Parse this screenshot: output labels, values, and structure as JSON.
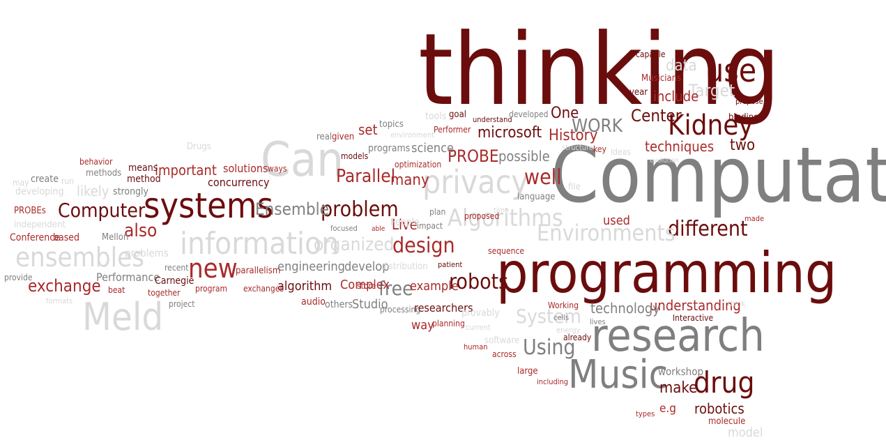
{
  "palette": {
    "dark": "#6b0d0d",
    "red": "#a92a2a",
    "gray": "#7f7f7f",
    "light": "#d9d9d9"
  },
  "words": [
    {
      "text": "thinking",
      "color": "dark"
    },
    {
      "text": "Computational",
      "color": "gray"
    },
    {
      "text": "programming",
      "color": "dark"
    },
    {
      "text": "research",
      "color": "gray"
    },
    {
      "text": "Music",
      "color": "gray"
    },
    {
      "text": "Can",
      "color": "light"
    },
    {
      "text": "systems",
      "color": "dark"
    },
    {
      "text": "information",
      "color": "light"
    },
    {
      "text": "Meld",
      "color": "light"
    },
    {
      "text": "ensembles",
      "color": "light"
    },
    {
      "text": "privacy",
      "color": "light"
    },
    {
      "text": "use",
      "color": "dark"
    },
    {
      "text": "Kidney",
      "color": "dark"
    },
    {
      "text": "drug",
      "color": "dark"
    },
    {
      "text": "robots",
      "color": "dark"
    },
    {
      "text": "new",
      "color": "red"
    },
    {
      "text": "problem",
      "color": "dark"
    },
    {
      "text": "Computer",
      "color": "dark"
    },
    {
      "text": "different",
      "color": "dark"
    },
    {
      "text": "design",
      "color": "red"
    },
    {
      "text": "Environments",
      "color": "light"
    },
    {
      "text": "Algorithms",
      "color": "light"
    },
    {
      "text": "Ensemble",
      "color": "gray"
    },
    {
      "text": "organized",
      "color": "light"
    },
    {
      "text": "Using",
      "color": "gray"
    },
    {
      "text": "System",
      "color": "light"
    },
    {
      "text": "exchange",
      "color": "red"
    },
    {
      "text": "also",
      "color": "red"
    },
    {
      "text": "Parallel",
      "color": "red"
    },
    {
      "text": "PROBE",
      "color": "red"
    },
    {
      "text": "WORK",
      "color": "gray"
    },
    {
      "text": "History",
      "color": "red"
    },
    {
      "text": "free",
      "color": "gray"
    },
    {
      "text": "make",
      "color": "dark"
    },
    {
      "text": "possible",
      "color": "gray"
    },
    {
      "text": "Target",
      "color": "light"
    },
    {
      "text": "Center",
      "color": "dark"
    },
    {
      "text": "many",
      "color": "red"
    },
    {
      "text": "microsoft",
      "color": "dark"
    },
    {
      "text": "well",
      "color": "red"
    },
    {
      "text": "Live",
      "color": "red"
    },
    {
      "text": "important",
      "color": "red"
    },
    {
      "text": "understanding",
      "color": "red"
    },
    {
      "text": "technology",
      "color": "gray"
    },
    {
      "text": "robotics",
      "color": "dark"
    },
    {
      "text": "Studio",
      "color": "gray"
    },
    {
      "text": "engineering",
      "color": "gray"
    },
    {
      "text": "develop",
      "color": "gray"
    },
    {
      "text": "algorithm",
      "color": "dark"
    },
    {
      "text": "Complex",
      "color": "red"
    },
    {
      "text": "example",
      "color": "red"
    },
    {
      "text": "science",
      "color": "gray"
    },
    {
      "text": "techniques",
      "color": "red"
    },
    {
      "text": "One",
      "color": "dark"
    },
    {
      "text": "include",
      "color": "red"
    },
    {
      "text": "data",
      "color": "light"
    },
    {
      "text": "used",
      "color": "red"
    },
    {
      "text": "two",
      "color": "dark"
    },
    {
      "text": "set",
      "color": "red"
    },
    {
      "text": "solutions",
      "color": "red"
    },
    {
      "text": "concurrency",
      "color": "dark"
    },
    {
      "text": "Performance",
      "color": "gray"
    },
    {
      "text": "likely",
      "color": "light"
    },
    {
      "text": "strongly",
      "color": "gray"
    },
    {
      "text": "method",
      "color": "dark"
    },
    {
      "text": "means",
      "color": "dark"
    },
    {
      "text": "methods",
      "color": "gray"
    },
    {
      "text": "create",
      "color": "gray"
    },
    {
      "text": "developing",
      "color": "light"
    },
    {
      "text": "PROBEs",
      "color": "red"
    },
    {
      "text": "independent",
      "color": "light"
    },
    {
      "text": "Conference",
      "color": "red"
    },
    {
      "text": "based",
      "color": "red"
    },
    {
      "text": "provide",
      "color": "gray"
    },
    {
      "text": "formats",
      "color": "light"
    },
    {
      "text": "run",
      "color": "light"
    },
    {
      "text": "may",
      "color": "light"
    },
    {
      "text": "behavior",
      "color": "red"
    },
    {
      "text": "Mellon",
      "color": "gray"
    },
    {
      "text": "Carnegie",
      "color": "dark"
    },
    {
      "text": "recent",
      "color": "gray"
    },
    {
      "text": "problems",
      "color": "light"
    },
    {
      "text": "beat",
      "color": "red"
    },
    {
      "text": "together",
      "color": "red"
    },
    {
      "text": "project",
      "color": "gray"
    },
    {
      "text": "program",
      "color": "red"
    },
    {
      "text": "parallelism",
      "color": "red"
    },
    {
      "text": "exchanges",
      "color": "red"
    },
    {
      "text": "audio",
      "color": "red"
    },
    {
      "text": "others",
      "color": "gray"
    },
    {
      "text": "store",
      "color": "red"
    },
    {
      "text": "processing",
      "color": "gray"
    },
    {
      "text": "researchers",
      "color": "dark"
    },
    {
      "text": "way",
      "color": "red"
    },
    {
      "text": "planning",
      "color": "red"
    },
    {
      "text": "provably",
      "color": "light"
    },
    {
      "text": "current",
      "color": "light"
    },
    {
      "text": "human",
      "color": "red"
    },
    {
      "text": "software",
      "color": "light"
    },
    {
      "text": "across",
      "color": "red"
    },
    {
      "text": "large",
      "color": "red"
    },
    {
      "text": "including",
      "color": "red"
    },
    {
      "text": "already",
      "color": "dark"
    },
    {
      "text": "lives",
      "color": "gray"
    },
    {
      "text": "energy",
      "color": "light"
    },
    {
      "text": "cells",
      "color": "gray"
    },
    {
      "text": "Working",
      "color": "red"
    },
    {
      "text": "Interactive",
      "color": "dark"
    },
    {
      "text": "workshop",
      "color": "gray"
    },
    {
      "text": "e.g",
      "color": "red"
    },
    {
      "text": "types",
      "color": "red"
    },
    {
      "text": "molecule",
      "color": "red"
    },
    {
      "text": "model",
      "color": "light"
    },
    {
      "text": "think",
      "color": "light"
    },
    {
      "text": "sequence",
      "color": "red"
    },
    {
      "text": "patient",
      "color": "dark"
    },
    {
      "text": "distribution",
      "color": "light"
    },
    {
      "text": "impact",
      "color": "gray"
    },
    {
      "text": "plan",
      "color": "gray"
    },
    {
      "text": "People",
      "color": "light"
    },
    {
      "text": "focused",
      "color": "gray"
    },
    {
      "text": "able",
      "color": "red"
    },
    {
      "text": "proposed",
      "color": "red"
    },
    {
      "text": "time",
      "color": "light"
    },
    {
      "text": "made",
      "color": "red"
    },
    {
      "text": "language",
      "color": "gray"
    },
    {
      "text": "file",
      "color": "light"
    },
    {
      "text": "structures",
      "color": "light"
    },
    {
      "text": "key",
      "color": "red"
    },
    {
      "text": "Ideas",
      "color": "light"
    },
    {
      "text": "evolution",
      "color": "light"
    },
    {
      "text": "binding",
      "color": "dark"
    },
    {
      "text": "propose",
      "color": "dark"
    },
    {
      "text": "year",
      "color": "dark"
    },
    {
      "text": "Musicians",
      "color": "red"
    },
    {
      "text": "capable",
      "color": "dark"
    },
    {
      "text": "understand",
      "color": "dark"
    },
    {
      "text": "developed",
      "color": "gray"
    },
    {
      "text": "Performer",
      "color": "red"
    },
    {
      "text": "goal",
      "color": "dark"
    },
    {
      "text": "tools",
      "color": "light"
    },
    {
      "text": "environment",
      "color": "light"
    },
    {
      "text": "topics",
      "color": "gray"
    },
    {
      "text": "real",
      "color": "gray"
    },
    {
      "text": "given",
      "color": "red"
    },
    {
      "text": "models",
      "color": "dark"
    },
    {
      "text": "programs",
      "color": "gray"
    },
    {
      "text": "optimization",
      "color": "red"
    },
    {
      "text": "ways",
      "color": "red"
    },
    {
      "text": "Drugs",
      "color": "light"
    }
  ]
}
